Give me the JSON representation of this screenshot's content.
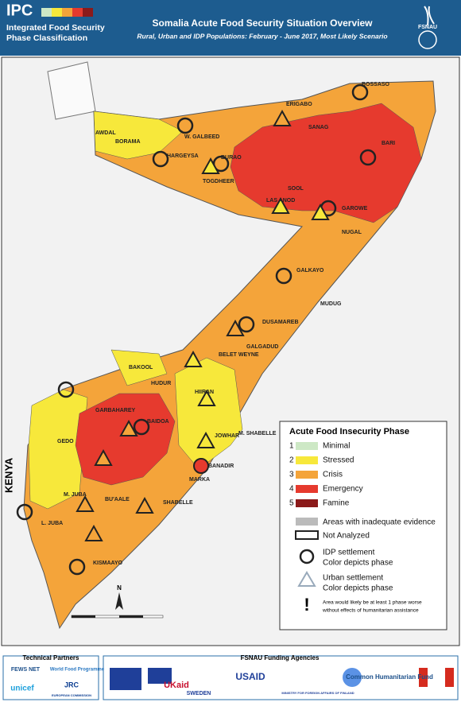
{
  "header": {
    "logo": "IPC",
    "logo_line1": "Integrated Food Security",
    "logo_line2": "Phase Classification",
    "title": "Somalia Acute Food Security Situation Overview",
    "subtitle": "Rural, Urban and IDP Populations: February - June 2017, Most Likely Scenario",
    "agency": "FSNAU"
  },
  "map": {
    "labels": [
      "BOSSASO",
      "ERIGABO",
      "AWDAL",
      "BORAMA",
      "W. GALBEED",
      "HARGEYSA",
      "BURAO",
      "TOGDHEER",
      "SANAG",
      "BARI",
      "SOOL",
      "LAS ANOD",
      "GAROWE",
      "NUGAL",
      "GALKAYO",
      "MUDUG",
      "DUSAMAREB",
      "GALGADUD",
      "BAKOOL",
      "BELET WEYNE",
      "HUDUR",
      "HIIRAN",
      "GARBAHAREY",
      "GEDO",
      "BAIDOA",
      "JOWHAR",
      "M. SHABELLE",
      "BANADIR",
      "MARKA",
      "SHABELLE",
      "BU'AALE",
      "M. JUBA",
      "L. JUBA",
      "KISMAAYO"
    ],
    "country": "KENYA",
    "north": "N"
  },
  "legend": {
    "title": "Acute Food Insecurity Phase",
    "items": [
      {
        "num": "1",
        "label": "Minimal"
      },
      {
        "num": "2",
        "label": "Stressed"
      },
      {
        "num": "3",
        "label": "Crisis"
      },
      {
        "num": "4",
        "label": "Emergency"
      },
      {
        "num": "5",
        "label": "Famine"
      }
    ],
    "inadequate": "Areas with inadequate evidence",
    "not_analyzed": "Not Analyzed",
    "idp": "IDP settlement",
    "idp_note": "Color depicts phase",
    "urban": "Urban settlement",
    "urban_note": "Color depicts phase",
    "humanitarian": "Area would likely be at least 1 phase worse",
    "humanitarian2": "without effects of humanitarian assistance"
  },
  "footer": {
    "partners": "Technical Partners",
    "funding": "FSNAU Funding Agencies",
    "logos": [
      "FEWS NET",
      "World Food Programme",
      "unicef",
      "JRC",
      "EUROPEAN COMMISSION",
      "UKaid",
      "SWEDEN",
      "USAID",
      "MINISTRY FOR FOREIGN AFFAIRS OF FINLAND",
      "Common Humanitarian Fund"
    ]
  }
}
